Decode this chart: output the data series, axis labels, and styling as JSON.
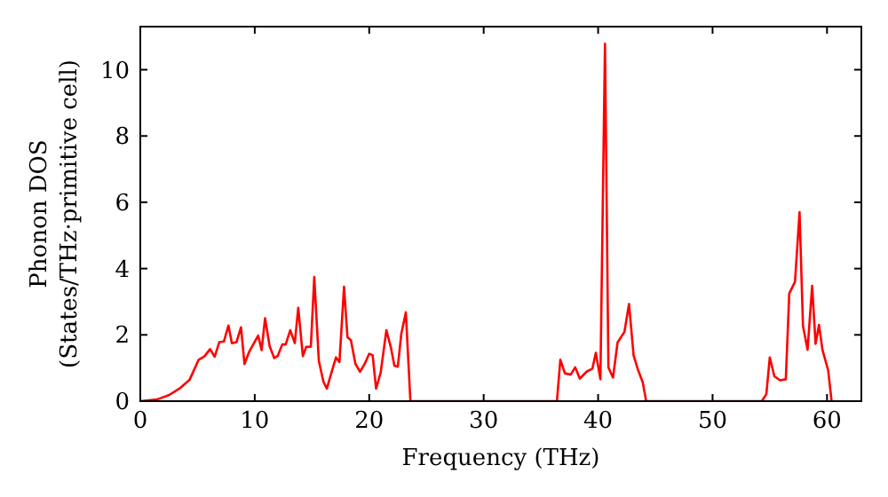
{
  "chart_data": {
    "type": "line",
    "xlabel": "Frequency (THz)",
    "ylabel": "Phonon DOS\n(States/THz·primitive cell)",
    "xlim": [
      0,
      63
    ],
    "ylim": [
      0,
      11.3
    ],
    "xticks": [
      0,
      10,
      20,
      30,
      40,
      50,
      60
    ],
    "yticks": [
      0,
      2,
      4,
      6,
      8,
      10
    ],
    "grid": false,
    "marker": "none",
    "line_style": "solid",
    "series": [
      {
        "color": "#ff0000",
        "x": [
          0,
          1.45,
          2.5,
          3.5,
          4.3,
          5.1,
          5.6,
          6.1,
          6.5,
          6.9,
          7.3,
          7.7,
          8.0,
          8.4,
          8.8,
          9.1,
          9.5,
          10.3,
          10.6,
          10.9,
          11.3,
          11.7,
          12.0,
          12.4,
          12.7,
          13.1,
          13.5,
          13.8,
          14.2,
          14.5,
          14.9,
          15.2,
          15.6,
          16.0,
          16.3,
          16.7,
          17.1,
          17.4,
          17.8,
          18.1,
          18.4,
          18.8,
          19.2,
          19.6,
          20.0,
          20.3,
          20.6,
          21.0,
          21.5,
          21.9,
          22.2,
          22.5,
          22.8,
          23.2,
          23.6,
          36.4,
          36.7,
          37.1,
          37.6,
          38.0,
          38.4,
          39.0,
          39.5,
          39.8,
          40.2,
          40.6,
          40.9,
          41.3,
          41.7,
          42.3,
          42.7,
          43.1,
          43.5,
          43.9,
          44.2,
          54.3,
          54.7,
          55.0,
          55.4,
          55.9,
          56.4,
          56.7,
          57.2,
          57.6,
          57.9,
          58.3,
          58.7,
          59.0,
          59.3,
          59.6,
          60.1,
          60.4
        ],
        "values": [
          0,
          0.05,
          0.18,
          0.4,
          0.64,
          1.25,
          1.35,
          1.57,
          1.34,
          1.78,
          1.8,
          2.28,
          1.75,
          1.78,
          2.23,
          1.12,
          1.48,
          1.98,
          1.54,
          2.5,
          1.66,
          1.3,
          1.36,
          1.71,
          1.71,
          2.14,
          1.75,
          2.82,
          1.36,
          1.64,
          1.64,
          3.75,
          1.21,
          0.59,
          0.38,
          0.86,
          1.32,
          1.18,
          3.45,
          1.93,
          1.84,
          1.12,
          0.89,
          1.12,
          1.43,
          1.39,
          0.38,
          0.86,
          2.14,
          1.61,
          1.07,
          1.04,
          2.02,
          2.68,
          0,
          0,
          1.25,
          0.84,
          0.8,
          1.02,
          0.68,
          0.89,
          0.98,
          1.46,
          0.66,
          10.78,
          1.02,
          0.71,
          1.77,
          2.09,
          2.93,
          1.38,
          0.93,
          0.57,
          0,
          0,
          0.21,
          1.32,
          0.75,
          0.63,
          0.66,
          3.25,
          3.6,
          5.7,
          2.27,
          1.55,
          3.48,
          1.73,
          2.3,
          1.55,
          0.93,
          0
        ]
      }
    ]
  }
}
